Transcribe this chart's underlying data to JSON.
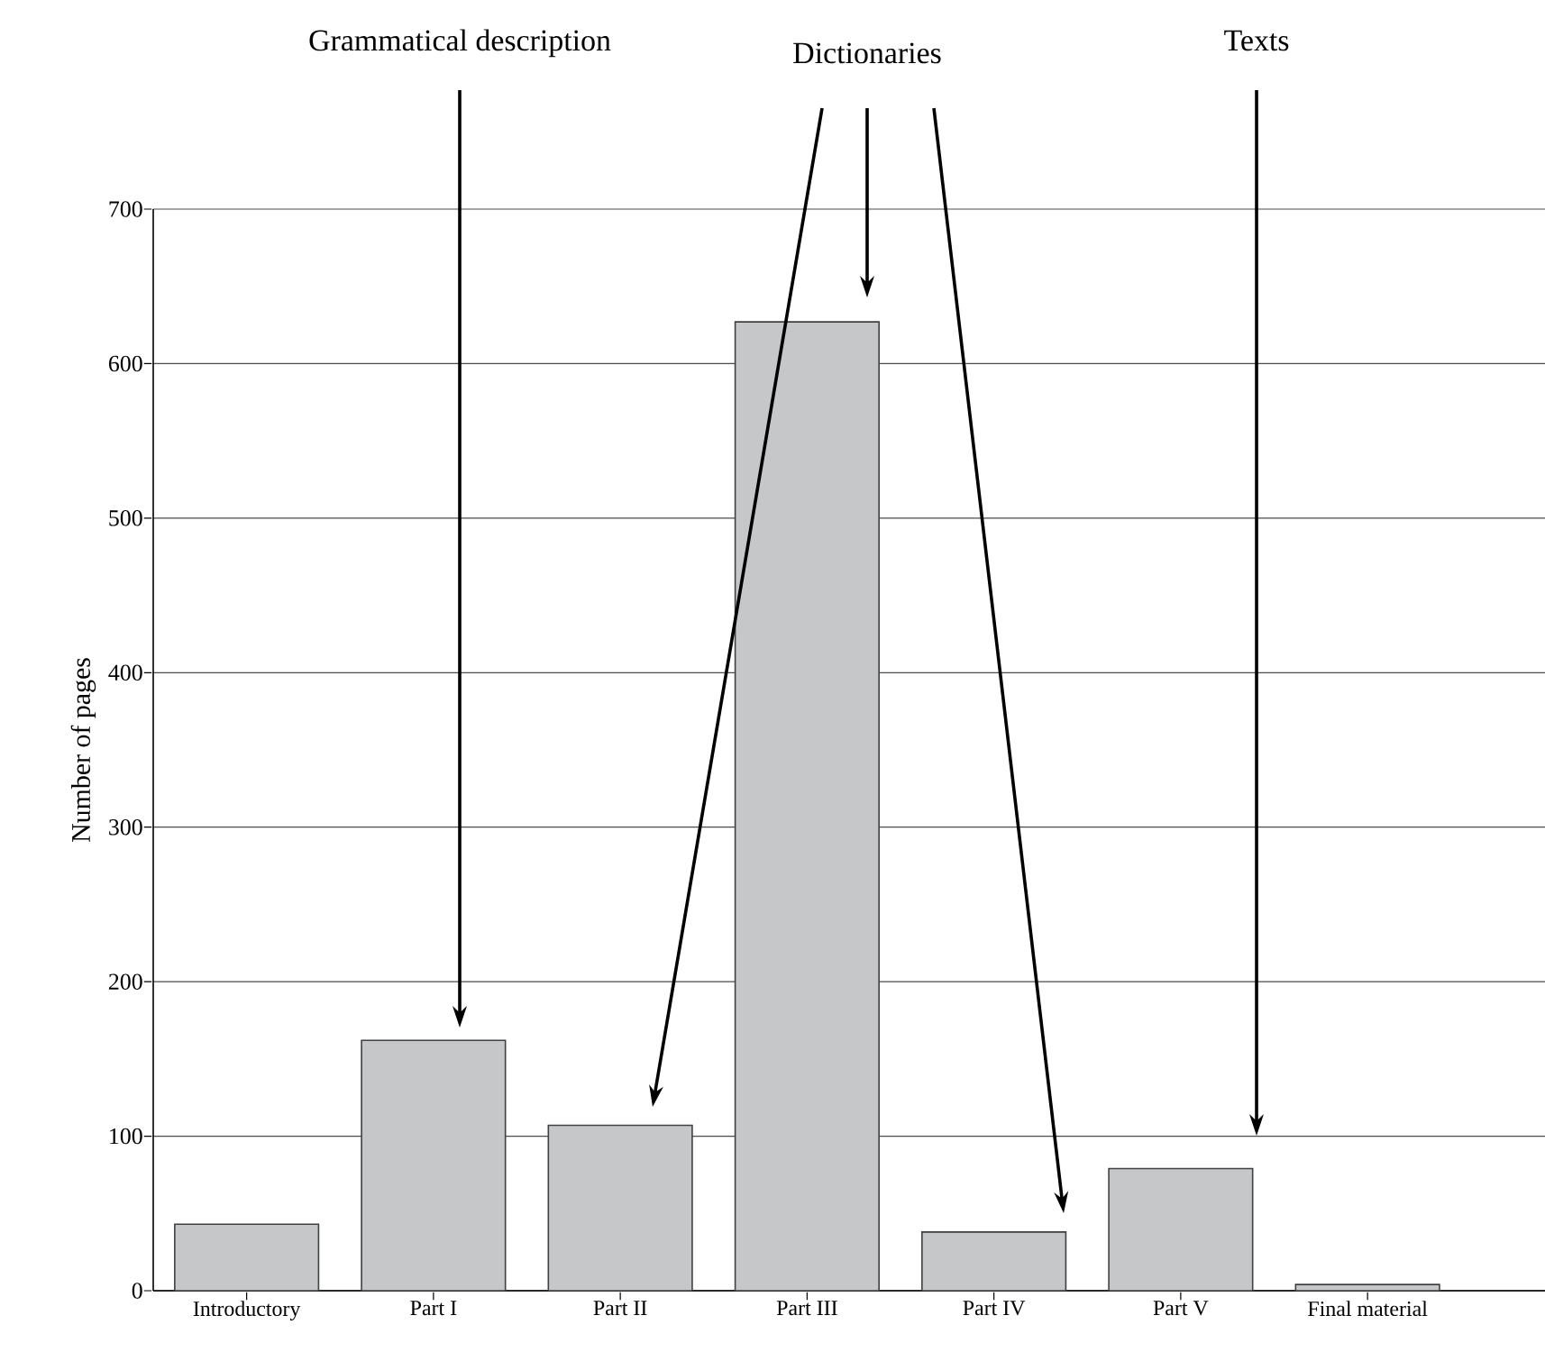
{
  "chart_data": {
    "type": "bar",
    "ylabel": "Number of pages",
    "categories": [
      "Introductory",
      "Part I",
      "Part II",
      "Part III",
      "Part IV",
      "Part V",
      "Final material"
    ],
    "values": [
      43,
      162,
      107,
      627,
      38,
      79,
      4
    ],
    "color": "#c6c7c9",
    "ylim": [
      0,
      700
    ],
    "yticks": [
      0,
      100,
      200,
      300,
      400,
      500,
      600,
      700
    ],
    "grid": "y",
    "annotations": [
      "Grammatical description",
      "Dictionaries",
      "Texts"
    ]
  }
}
